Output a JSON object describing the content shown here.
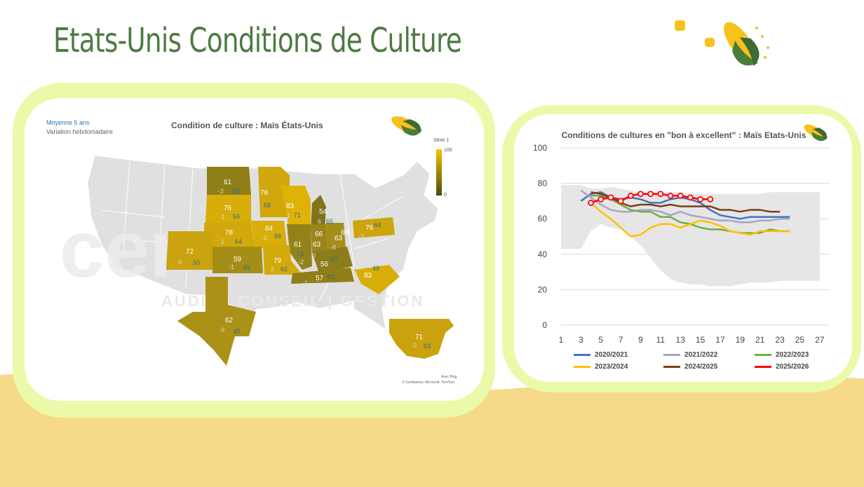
{
  "page_title": "Etats-Unis   Conditions de Culture",
  "map_panel": {
    "title": "Condition de culture : Maïs États-Unis",
    "legend_a": "Moyenne 5 ans",
    "legend_b": "Variation hebdomadaire",
    "scale_title": "Série 1",
    "scale_max": "100",
    "scale_min": "0",
    "attribution_1": "Avec Bing",
    "attribution_2": "© GeoNames, Microsoft, TomTom",
    "watermark_brand": "cer",
    "watermark_tagline": "AUDIT | CONSEIL | GESTION",
    "states": [
      {
        "value": "61",
        "var": "-2",
        "avg": "58"
      },
      {
        "value": "76",
        "var": "2",
        "avg": "58"
      },
      {
        "value": "76",
        "var": "-1",
        "avg": "59"
      },
      {
        "value": "83",
        "var": "1",
        "avg": "71"
      },
      {
        "value": "54",
        "var": "6",
        "avg": "65"
      },
      {
        "value": "78",
        "var": "1",
        "avg": "64"
      },
      {
        "value": "84",
        "var": "-2",
        "avg": "66"
      },
      {
        "value": "66",
        "var": "",
        "avg": ""
      },
      {
        "value": "63",
        "var": "",
        "avg": ""
      },
      {
        "value": "76",
        "var": "-3",
        "avg": "64"
      },
      {
        "value": "72",
        "var": "6",
        "avg": "50"
      },
      {
        "value": "61",
        "var": "-2",
        "avg": "73"
      },
      {
        "value": "63",
        "var": "0",
        "avg": ""
      },
      {
        "value": "63",
        "var": "-8",
        "avg": ""
      },
      {
        "value": "59",
        "var": "-1",
        "avg": "49"
      },
      {
        "value": "79",
        "var": "2",
        "avg": "62"
      },
      {
        "value": "56",
        "var": "-4",
        "avg": "67"
      },
      {
        "value": "57",
        "var": "-1",
        "avg": "62"
      },
      {
        "value": "83",
        "var": "0",
        "avg": "49"
      },
      {
        "value": "62",
        "var": "0",
        "avg": "45"
      },
      {
        "value": "71",
        "var": "0",
        "avg": "63"
      }
    ]
  },
  "chart_data": {
    "type": "line",
    "title": "Conditions de cultures en \"bon à excellent\" : Maïs Etats-Unis",
    "x_ticks": [
      1,
      3,
      5,
      7,
      9,
      11,
      13,
      15,
      17,
      19,
      21,
      23,
      25,
      27
    ],
    "y_ticks": [
      0,
      20,
      40,
      60,
      80,
      100
    ],
    "xlim": [
      1,
      28
    ],
    "ylim": [
      0,
      100
    ],
    "grid": true,
    "legend_position": "bottom",
    "range_band": {
      "x": [
        1,
        3,
        4,
        5,
        6,
        7,
        8,
        9,
        10,
        11,
        12,
        13,
        14,
        15,
        16,
        17,
        18,
        19,
        20,
        21,
        22,
        23,
        24,
        25,
        26,
        27
      ],
      "upper": [
        79,
        79,
        77,
        77,
        78,
        77,
        76,
        75,
        75,
        75,
        75,
        75,
        74,
        74,
        74,
        74,
        74,
        74,
        74,
        74,
        75,
        75,
        75,
        75,
        75,
        75
      ],
      "lower": [
        43,
        43,
        53,
        57,
        55,
        54,
        50,
        45,
        38,
        31,
        26,
        24,
        23,
        23,
        22,
        22,
        22,
        23,
        24,
        24,
        24,
        25,
        25,
        25,
        25,
        25
      ]
    },
    "series": [
      {
        "name": "2020/2021",
        "color": "#4472c4",
        "x": [
          3,
          4,
          5,
          6,
          7,
          8,
          9,
          10,
          11,
          12,
          13,
          14,
          15,
          16,
          17,
          18,
          19,
          20,
          21,
          22,
          23,
          24
        ],
        "values": [
          70,
          74,
          75,
          72,
          71,
          72,
          71,
          69,
          69,
          71,
          72,
          71,
          69,
          65,
          62,
          61,
          60,
          61,
          61,
          61,
          61,
          61
        ]
      },
      {
        "name": "2021/2022",
        "color": "#a5a5c8",
        "x": [
          3,
          4,
          5,
          6,
          7,
          8,
          9,
          10,
          11,
          12,
          13,
          14,
          15,
          16,
          17,
          18,
          19,
          20,
          21,
          22,
          23,
          24
        ],
        "values": [
          76,
          72,
          68,
          65,
          64,
          64,
          65,
          65,
          64,
          62,
          64,
          62,
          61,
          60,
          59,
          59,
          58,
          58,
          59,
          59,
          60,
          60
        ]
      },
      {
        "name": "2022/2023",
        "color": "#70ad47",
        "x": [
          4,
          5,
          6,
          7,
          8,
          9,
          10,
          11,
          12,
          13,
          14,
          15,
          16,
          17,
          18,
          19,
          20,
          21,
          22,
          23,
          24
        ],
        "values": [
          73,
          73,
          71,
          68,
          65,
          64,
          64,
          61,
          61,
          58,
          57,
          55,
          54,
          54,
          53,
          52,
          52,
          52,
          54,
          53,
          53
        ]
      },
      {
        "name": "2023/2024",
        "color": "#ffc000",
        "x": [
          4,
          5,
          6,
          7,
          8,
          9,
          10,
          11,
          12,
          13,
          14,
          15,
          16,
          17,
          18,
          19,
          20,
          21,
          22,
          23,
          24
        ],
        "values": [
          69,
          64,
          60,
          55,
          50,
          51,
          55,
          57,
          57,
          55,
          57,
          59,
          58,
          56,
          53,
          52,
          51,
          53,
          53,
          53,
          53
        ]
      },
      {
        "name": "2024/2025",
        "color": "#7b3f12",
        "x": [
          4,
          5,
          6,
          7,
          8,
          9,
          10,
          11,
          12,
          13,
          14,
          15,
          16,
          17,
          18,
          19,
          20,
          21,
          22,
          23
        ],
        "values": [
          75,
          74,
          72,
          69,
          67,
          68,
          68,
          67,
          68,
          67,
          67,
          67,
          67,
          65,
          65,
          64,
          65,
          65,
          64,
          64
        ]
      },
      {
        "name": "2025/2026",
        "color": "#ff0000",
        "x": [
          4,
          5,
          6,
          7,
          8,
          9,
          10,
          11,
          12,
          13,
          14,
          15,
          16
        ],
        "values": [
          69,
          71,
          72,
          70,
          73,
          74,
          74,
          74,
          73,
          73,
          72,
          71,
          71
        ],
        "markers": true
      }
    ]
  }
}
